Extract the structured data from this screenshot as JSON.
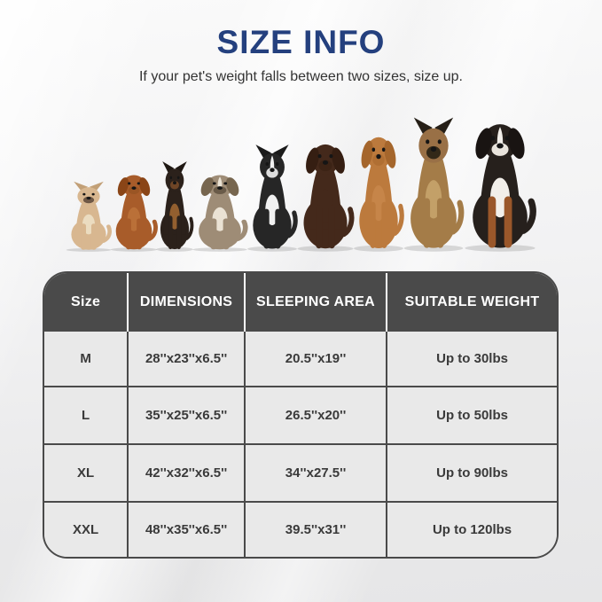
{
  "page": {
    "title": "SIZE INFO",
    "subtitle": "If your pet's weight falls between two sizes, size up."
  },
  "colors": {
    "title_blue": "#24407E",
    "subtitle_text": "#333333",
    "header_bg": "#4A4A4A",
    "header_text": "#FFFFFF",
    "header_divider": "#FFFFFF",
    "body_bg": "#E9E9E9",
    "body_text": "#3A3A3A",
    "grid": "#4A4A4A"
  },
  "chart_data": {
    "type": "table",
    "title": "SIZE INFO",
    "subtitle": "If your pet's weight falls between two sizes, size up.",
    "columns": [
      "Size",
      "DIMENSIONS",
      "SLEEPING AREA",
      "SUITABLE WEIGHT"
    ],
    "rows": [
      [
        "M",
        "28''x23''x6.5''",
        "20.5''x19''",
        "Up to 30lbs"
      ],
      [
        "L",
        "35''x25''x6.5''",
        "26.5''x20''",
        "Up to 50lbs"
      ],
      [
        "XL",
        "42''x32''x6.5''",
        "34''x27.5''",
        "Up to 90lbs"
      ],
      [
        "XXL",
        "48''x35''x6.5''",
        "39.5''x31''",
        "Up to 120lbs"
      ]
    ]
  },
  "dogs": [
    {
      "breed": "french-bulldog",
      "height": 80,
      "width": 56,
      "ear_type": "pointy",
      "body": "#D8B790",
      "ears": "#C2A077",
      "chest": "#EBDCC0",
      "muzzle": "#6E5846"
    },
    {
      "breed": "cavalier-king-charles-spaniel",
      "height": 95,
      "width": 58,
      "ear_type": "floppy",
      "body": "#A85C2A",
      "ears": "#8A4517",
      "chest": "#BA7038",
      "muzzle": "#9A5524"
    },
    {
      "breed": "miniature-pinscher",
      "height": 103,
      "width": 46,
      "ear_type": "pointy",
      "body": "#2B211B",
      "ears": "#1F1813",
      "chest": "#935F2F",
      "muzzle": "#6E4526"
    },
    {
      "breed": "english-bulldog",
      "height": 95,
      "width": 68,
      "ear_type": "floppy",
      "body": "#9E8C76",
      "ears": "#77664F",
      "chest": "#EAE2D4",
      "muzzle": "#6A5B49",
      "blaze": true
    },
    {
      "breed": "border-collie",
      "height": 122,
      "width": 62,
      "ear_type": "pointy",
      "body": "#262626",
      "ears": "#1B1B1B",
      "chest": "#F1F1F1",
      "muzzle": "#DDDDDD",
      "blaze": true
    },
    {
      "breed": "chocolate-labrador",
      "height": 133,
      "width": 70,
      "ear_type": "floppy",
      "body": "#44291B",
      "ears": "#351E12",
      "chest": "#44291B",
      "muzzle": "#3C2315"
    },
    {
      "breed": "vizsla",
      "height": 142,
      "width": 62,
      "ear_type": "floppy",
      "body": "#BC7A3D",
      "ears": "#A5662C",
      "chest": "#C68549",
      "muzzle": "#B06F33"
    },
    {
      "breed": "german-shepherd",
      "height": 153,
      "width": 74,
      "ear_type": "pointy",
      "body": "#A47C48",
      "ears": "#261F17",
      "chest": "#C3A068",
      "muzzle": "#322818",
      "head": "#997046"
    },
    {
      "breed": "bernese-mountain-dog",
      "height": 158,
      "width": 88,
      "ear_type": "floppy",
      "body": "#26201C",
      "ears": "#191412",
      "chest": "#F2EFEA",
      "muzzle": "#E9E4DC",
      "blaze": true,
      "legs": "#9A572A"
    }
  ]
}
